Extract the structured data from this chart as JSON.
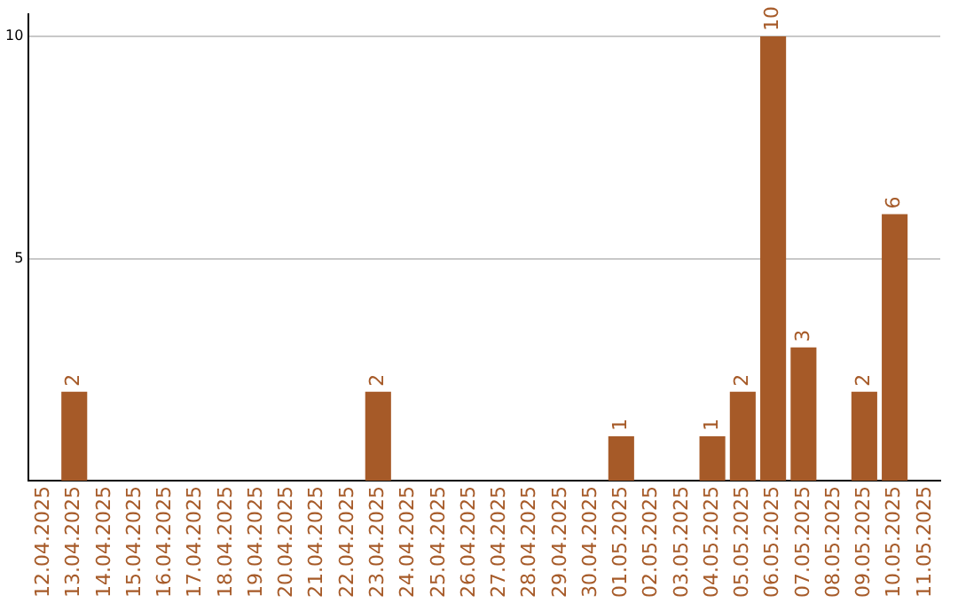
{
  "chart_data": {
    "type": "bar",
    "categories": [
      "12.04.2025",
      "13.04.2025",
      "14.04.2025",
      "15.04.2025",
      "16.04.2025",
      "17.04.2025",
      "18.04.2025",
      "19.04.2025",
      "20.04.2025",
      "21.04.2025",
      "22.04.2025",
      "23.04.2025",
      "24.04.2025",
      "25.04.2025",
      "26.04.2025",
      "27.04.2025",
      "28.04.2025",
      "29.04.2025",
      "30.04.2025",
      "01.05.2025",
      "02.05.2025",
      "03.05.2025",
      "04.05.2025",
      "05.05.2025",
      "06.05.2025",
      "07.05.2025",
      "08.05.2025",
      "09.05.2025",
      "10.05.2025",
      "11.05.2025"
    ],
    "values": [
      null,
      2,
      null,
      null,
      null,
      null,
      null,
      null,
      null,
      null,
      null,
      2,
      null,
      null,
      null,
      null,
      null,
      null,
      null,
      1,
      null,
      null,
      1,
      2,
      10,
      3,
      null,
      2,
      6,
      null
    ],
    "color": "#a65a28",
    "ylim": [
      0,
      10.5
    ],
    "yticks": [
      5,
      10
    ],
    "grid": "y",
    "data_labels": true
  }
}
